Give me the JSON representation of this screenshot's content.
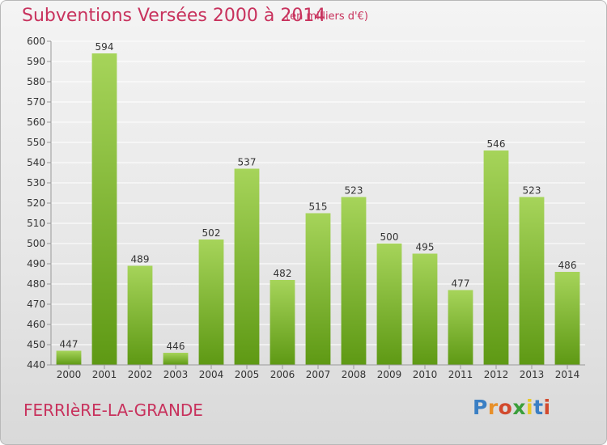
{
  "header": {
    "title": "Subventions Versées 2000 à 2014",
    "unit": "(en milliers d'€)"
  },
  "footer": {
    "commune": "FERRIèRE-LA-GRANDE",
    "logo": "Proxiti",
    "logo_colors": [
      "#3a7fc4",
      "#e8902a",
      "#d24a2e",
      "#3a9e3a",
      "#e8c82a",
      "#3a7fc4",
      "#d24a2e"
    ]
  },
  "colors": {
    "title": "#c8325d",
    "bar_top": "#a6d45a",
    "bar_bottom": "#5e9914",
    "grid": "#ffffff",
    "axis_text": "#333333"
  },
  "chart_data": {
    "type": "bar",
    "categories": [
      "2000",
      "2001",
      "2002",
      "2003",
      "2004",
      "2005",
      "2006",
      "2007",
      "2008",
      "2009",
      "2010",
      "2011",
      "2012",
      "2013",
      "2014"
    ],
    "values": [
      447,
      594,
      489,
      446,
      502,
      537,
      482,
      515,
      523,
      500,
      495,
      477,
      546,
      523,
      486
    ],
    "ylim": [
      440,
      600
    ],
    "yticks": [
      440,
      450,
      460,
      470,
      480,
      490,
      500,
      510,
      520,
      530,
      540,
      550,
      560,
      570,
      580,
      590,
      600
    ],
    "grid": true,
    "data_labels": true
  }
}
